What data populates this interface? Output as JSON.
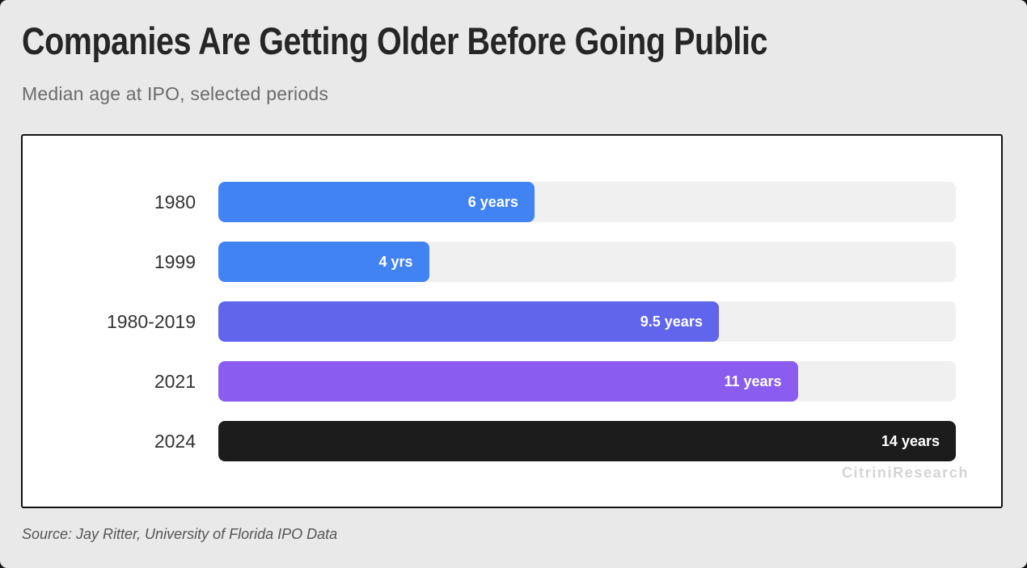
{
  "header": {
    "title": "Companies Are Getting Older Before Going Public",
    "subtitle": "Median age at IPO, selected periods"
  },
  "footer": {
    "source": "Source: Jay Ritter, University of Florida IPO Data"
  },
  "watermark": "CitriniResearch",
  "colors": {
    "page_background": "#e9e9e9",
    "card_background": "#ffffff",
    "card_border": "#121212",
    "track": "#f0f0f0",
    "blue": "#4183f2",
    "indigo": "#6165ec",
    "purple": "#8b5cf0",
    "black": "#1c1c1c",
    "value_text": "#ffffff",
    "category_text": "#333333",
    "watermark_text": "#d4d4d4"
  },
  "chart_data": {
    "type": "bar",
    "orientation": "horizontal",
    "title": "Companies Are Getting Older Before Going Public",
    "subtitle": "Median age at IPO, selected periods",
    "categories": [
      "1980",
      "1999",
      "1980-2019",
      "2021",
      "2024"
    ],
    "values": [
      6,
      4,
      9.5,
      11,
      14
    ],
    "value_labels": [
      "6 years",
      "4 yrs",
      "9.5 years",
      "11 years",
      "14 years"
    ],
    "bar_colors": [
      "#4183f2",
      "#4183f2",
      "#6165ec",
      "#8b5cf0",
      "#1c1c1c"
    ],
    "unit": "years",
    "xlim": [
      0,
      14
    ],
    "grid": false,
    "legend": false,
    "track_color": "#f0f0f0",
    "source": "Source: Jay Ritter, University of Florida IPO Data",
    "watermark": "CitriniResearch"
  }
}
